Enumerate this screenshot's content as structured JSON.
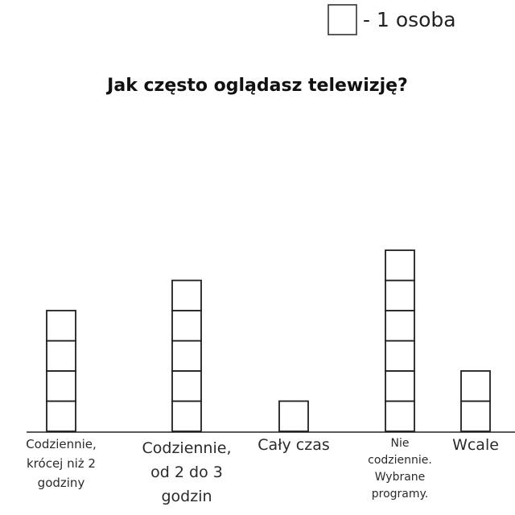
{
  "legend": {
    "label": "- 1 osoba",
    "box_icon": "unit-square-icon"
  },
  "chart_data": {
    "type": "bar",
    "title": "Jak często oglądasz telewizję?",
    "unit_label": "- 1 osoba",
    "xlabel": "",
    "ylabel": "",
    "categories": [
      "Codziennie, krócej niż 2 godziny",
      "Codziennie, od 2 do 3 godzin",
      "Cały czas",
      "Nie codziennie. Wybrane programy.",
      "Wcale"
    ],
    "category_label_lines": [
      [
        "Codziennie,",
        "krócej niż 2",
        "godziny"
      ],
      [
        "Codziennie,",
        "od 2 do 3",
        "godzin"
      ],
      [
        "Cały czas"
      ],
      [
        "Nie",
        "codziennie.",
        "Wybrane",
        "programy."
      ],
      [
        "Wcale"
      ]
    ],
    "values": [
      4,
      5,
      1,
      6,
      2
    ],
    "ylim": [
      0,
      6
    ],
    "grid": false,
    "legend_position": "top-right"
  },
  "colors": {
    "box_stroke": "#1f1f1f",
    "box_fill": "#ffffff",
    "text": "#2a2a2a"
  }
}
